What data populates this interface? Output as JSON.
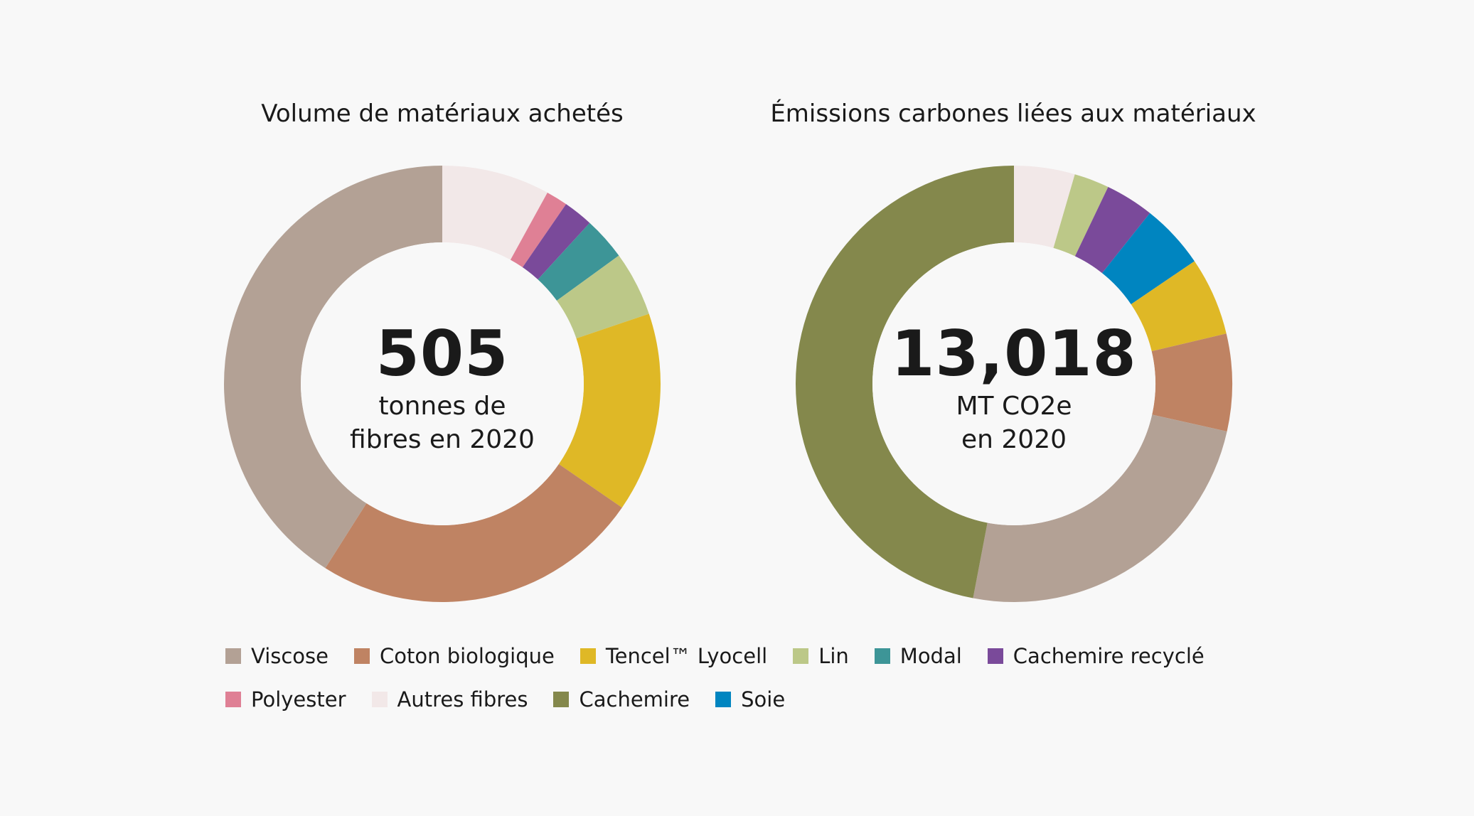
{
  "colors": {
    "Viscose": "#b3a195",
    "Coton biologique": "#bf8363",
    "Tencel™ Lyocell": "#dfb826",
    "Lin": "#bcc888",
    "Modal": "#3d9597",
    "Cachemire recyclé": "#7a4a9a",
    "Polyester": "#df8095",
    "Autres fibres": "#f2e8e8",
    "Cachemire": "#84884c",
    "Soie": "#0085c0"
  },
  "chart_data": [
    {
      "type": "pie",
      "title": "Volume de matériaux achetés",
      "center_value": "505",
      "center_line1": "tonnes de",
      "center_line2": "fibres en 2020",
      "slices": [
        {
          "label": "Autres fibres",
          "value": 8.0
        },
        {
          "label": "Polyester",
          "value": 1.6
        },
        {
          "label": "Cachemire recyclé",
          "value": 2.2
        },
        {
          "label": "Modal",
          "value": 3.2
        },
        {
          "label": "Lin",
          "value": 4.8
        },
        {
          "label": "Tencel™ Lyocell",
          "value": 14.8
        },
        {
          "label": "Coton biologique",
          "value": 24.4
        },
        {
          "label": "Viscose",
          "value": 41.0
        }
      ]
    },
    {
      "type": "pie",
      "title": "Émissions carbones liées aux matériaux",
      "center_value": "13,018",
      "center_line1": "MT CO2e",
      "center_line2": "en 2020",
      "slices": [
        {
          "label": "Autres fibres",
          "value": 4.5
        },
        {
          "label": "Lin",
          "value": 2.6
        },
        {
          "label": "Cachemire recyclé",
          "value": 3.6
        },
        {
          "label": "Soie",
          "value": 4.8
        },
        {
          "label": "Tencel™ Lyocell",
          "value": 5.8
        },
        {
          "label": "Coton biologique",
          "value": 7.2
        },
        {
          "label": "Viscose",
          "value": 24.5
        },
        {
          "label": "Cachemire",
          "value": 47.0
        }
      ]
    }
  ],
  "legend": {
    "row1": [
      "Viscose",
      "Coton biologique",
      "Tencel™ Lyocell",
      "Lin",
      "Modal",
      "Cachemire recyclé"
    ],
    "row2": [
      "Polyester",
      "Autres fibres",
      "Cachemire",
      "Soie"
    ]
  }
}
